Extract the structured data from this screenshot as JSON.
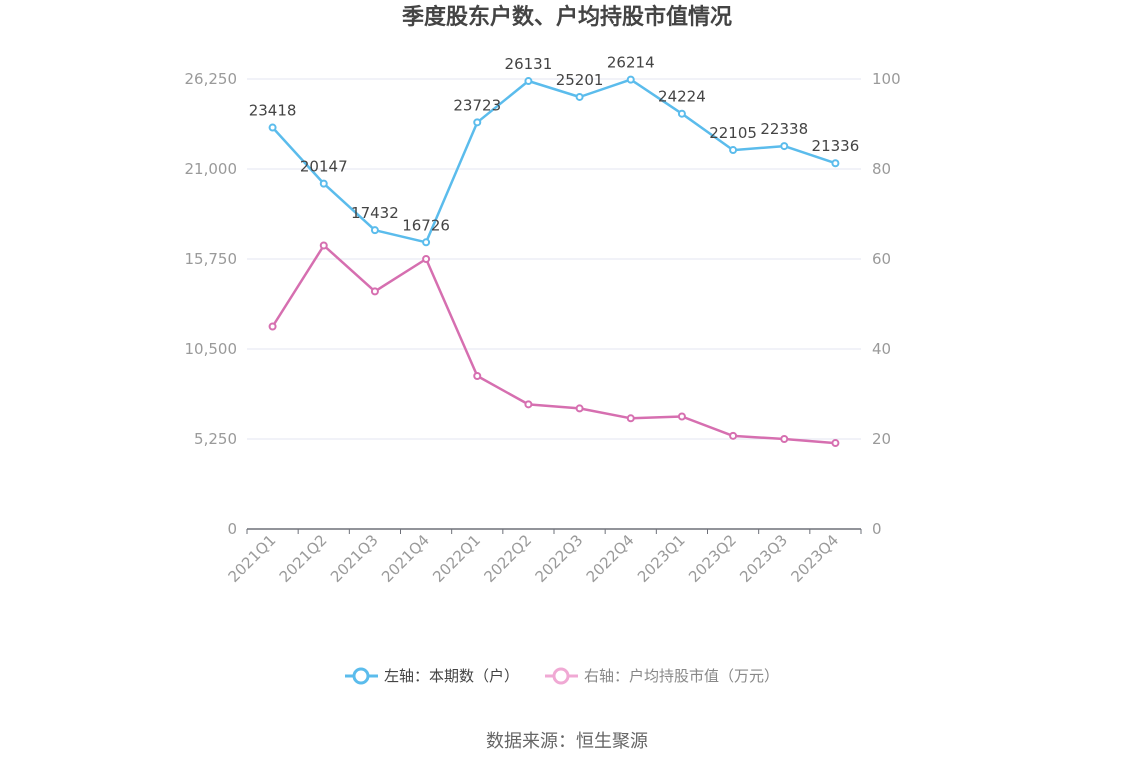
{
  "chart_data": {
    "type": "line",
    "title": "季度股东户数、户均持股市值情况",
    "categories": [
      "2021Q1",
      "2021Q2",
      "2021Q3",
      "2021Q4",
      "2022Q1",
      "2022Q2",
      "2022Q3",
      "2022Q4",
      "2023Q1",
      "2023Q2",
      "2023Q3",
      "2023Q4"
    ],
    "left_axis": {
      "min": 0,
      "max": 26250,
      "ticks": [
        "0",
        "5,250",
        "10,500",
        "15,750",
        "21,000",
        "26,250"
      ],
      "tick_values": [
        0,
        5250,
        10500,
        15750,
        21000,
        26250
      ]
    },
    "right_axis": {
      "min": 0,
      "max": 100,
      "ticks": [
        "0",
        "20",
        "40",
        "60",
        "80",
        "100"
      ],
      "tick_values": [
        0,
        20,
        40,
        60,
        80,
        100
      ]
    },
    "grid": true,
    "legend_position": "bottom",
    "series": [
      {
        "name": "左轴：本期数（户）",
        "axis": "left",
        "color": "#5bbcec",
        "values": [
          23418,
          20147,
          17432,
          16726,
          23723,
          26131,
          25201,
          26214,
          24224,
          22105,
          22338,
          21336
        ],
        "labels": [
          "23418",
          "20147",
          "17432",
          "16726",
          "23723",
          "26131",
          "25201",
          "26214",
          "24224",
          "22105",
          "22338",
          "21336"
        ]
      },
      {
        "name": "右轴：户均持股市值（万元）",
        "axis": "right",
        "color": "#d66fb0",
        "values": [
          45.0,
          63.0,
          52.8,
          60.0,
          34.0,
          27.7,
          26.8,
          24.6,
          25.0,
          20.7,
          20.0,
          19.1
        ]
      }
    ],
    "legend_colors": {
      "left_text": "#444444",
      "right_text": "#888888",
      "right_marker": "#f0a9d4"
    }
  },
  "source": "数据来源：恒生聚源"
}
